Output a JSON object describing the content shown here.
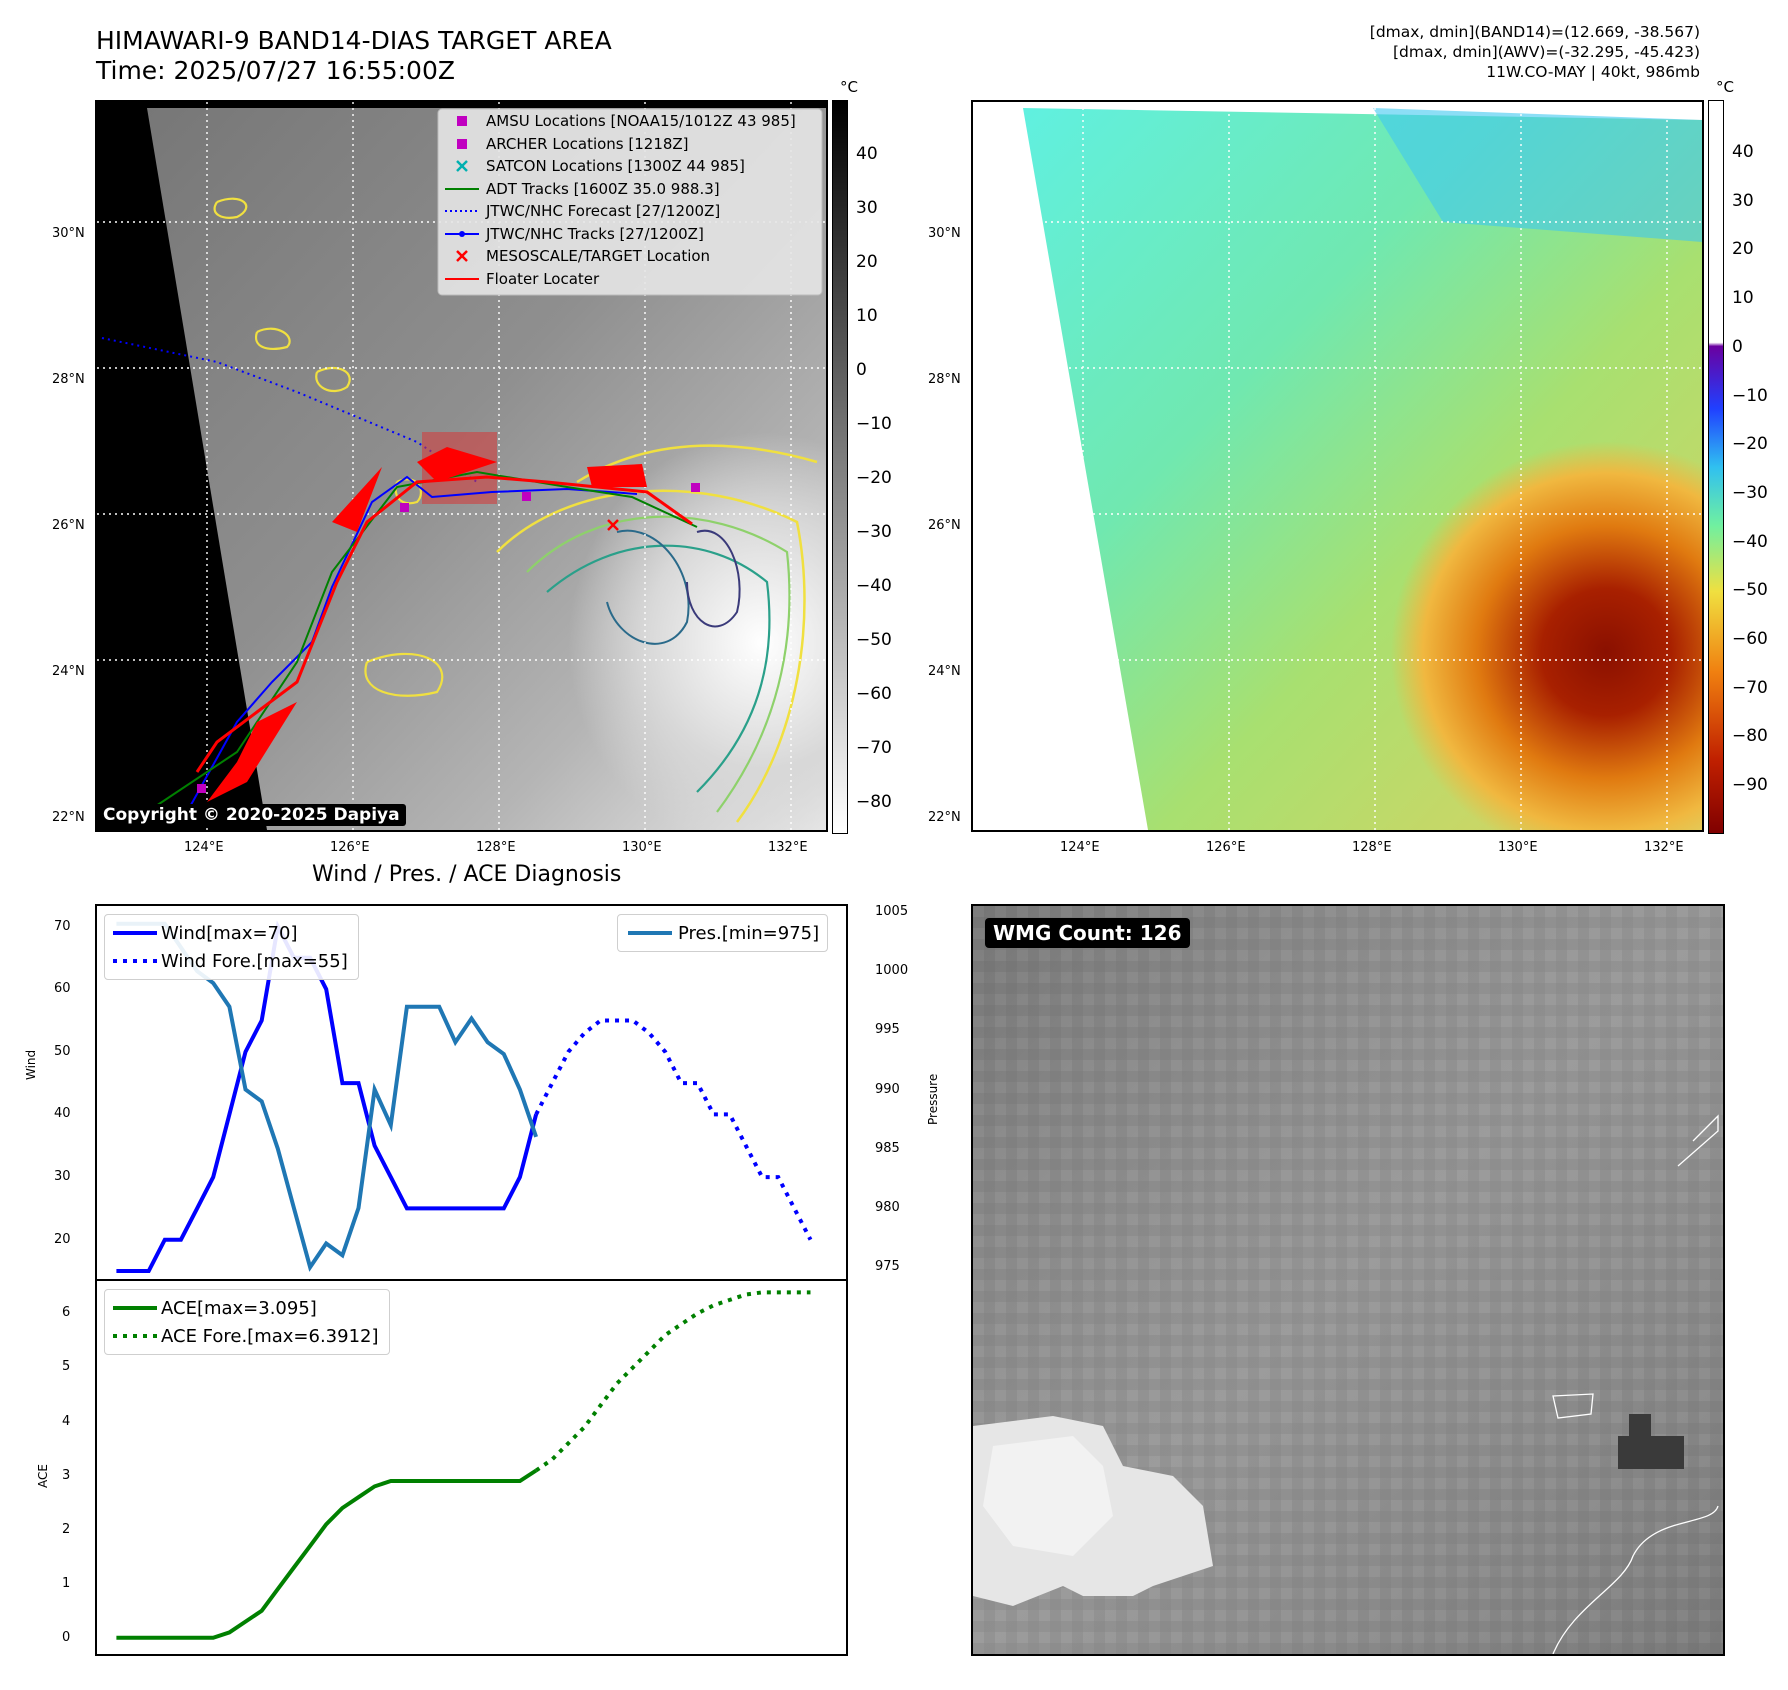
{
  "left_panel": {
    "title_line1": "HIMAWARI-9 BAND14-DIAS TARGET AREA",
    "title_line2": "Time: 2025/07/27 16:55:00Z",
    "unit": "°C",
    "copyright": "Copyright © 2020-2025 Dapiya",
    "lat_labels": [
      "30°N",
      "28°N",
      "26°N",
      "24°N",
      "22°N"
    ],
    "lon_labels": [
      "124°E",
      "126°E",
      "128°E",
      "130°E",
      "132°E"
    ],
    "colorbar_ticks": [
      "40",
      "30",
      "20",
      "10",
      "0",
      "−10",
      "−20",
      "−30",
      "−40",
      "−50",
      "−60",
      "−70",
      "−80"
    ],
    "legend": [
      {
        "label": "AMSU Locations [NOAA15/1012Z 43 985]",
        "symbol": "square",
        "color": "#c000c0"
      },
      {
        "label": "ARCHER Locations [1218Z]",
        "symbol": "square",
        "color": "#c000c0"
      },
      {
        "label": "SATCON Locations [1300Z 44 985]",
        "symbol": "x",
        "color": "#00b0b0"
      },
      {
        "label": "ADT Tracks [1600Z 35.0 988.3]",
        "symbol": "line",
        "color": "#008000"
      },
      {
        "label": "JTWC/NHC Forecast [27/1200Z]",
        "symbol": "dotted",
        "color": "#0000ff"
      },
      {
        "label": "JTWC/NHC Tracks [27/1200Z]",
        "symbol": "line-dot",
        "color": "#0000ff"
      },
      {
        "label": "MESOSCALE/TARGET Location",
        "symbol": "x",
        "color": "#ff0000"
      },
      {
        "label": "Floater Locater",
        "symbol": "line",
        "color": "#ff0000"
      }
    ]
  },
  "right_panel": {
    "info_line1": "[dmax, dmin](BAND14)=(12.669, -38.567)",
    "info_line2": "[dmax, dmin](AWV)=(-32.295, -45.423)",
    "info_line3": "11W.CO-MAY | 40kt, 986mb",
    "unit": "°C",
    "lat_labels": [
      "30°N",
      "28°N",
      "26°N",
      "24°N",
      "22°N"
    ],
    "lon_labels": [
      "124°E",
      "126°E",
      "128°E",
      "130°E",
      "132°E"
    ],
    "colorbar_ticks": [
      "40",
      "30",
      "20",
      "10",
      "0",
      "−10",
      "−20",
      "−30",
      "−40",
      "−50",
      "−60",
      "−70",
      "−80",
      "−90"
    ]
  },
  "wind_panel": {
    "title": "Wind / Pres. / ACE Diagnosis",
    "ylabel_left": "Wind",
    "ylabel_right": "Pressure",
    "wind_ticks": [
      "70",
      "60",
      "50",
      "40",
      "30",
      "20"
    ],
    "pres_ticks": [
      "1005",
      "1000",
      "995",
      "990",
      "985",
      "980",
      "975"
    ]
  },
  "ace_panel": {
    "ylabel": "ACE",
    "ticks": [
      "6",
      "5",
      "4",
      "3",
      "2",
      "1",
      "0"
    ]
  },
  "wmg_panel": {
    "label": "WMG Count: 126"
  },
  "chart_data": [
    {
      "type": "line",
      "title": "Wind / Pres. / ACE Diagnosis",
      "ylabel": "Wind",
      "y2label": "Pressure",
      "ylim": [
        15,
        72
      ],
      "y2lim": [
        974,
        1005.5
      ],
      "x": [
        0,
        1,
        2,
        3,
        4,
        5,
        6,
        7,
        8,
        9,
        10,
        11,
        12,
        13,
        14,
        15,
        16,
        17,
        18,
        19,
        20,
        21,
        22,
        23,
        24,
        25,
        26,
        27,
        28,
        29,
        30,
        31,
        32,
        33,
        34,
        35,
        36,
        37,
        38,
        39,
        40,
        41,
        42,
        43
      ],
      "series": [
        {
          "name": "Wind[max=70]",
          "axis": "left",
          "style": "solid",
          "color": "#0000ff",
          "x": [
            0,
            1,
            2,
            3,
            4,
            5,
            6,
            7,
            8,
            9,
            10,
            11,
            12,
            13,
            14,
            15,
            16,
            17,
            18,
            19,
            20,
            21,
            22,
            23,
            24,
            25,
            26
          ],
          "values": [
            15,
            15,
            15,
            20,
            20,
            25,
            30,
            40,
            50,
            55,
            70,
            65,
            65,
            60,
            45,
            45,
            35,
            30,
            25,
            25,
            25,
            25,
            25,
            25,
            25,
            30,
            40
          ]
        },
        {
          "name": "Wind Fore.[max=55]",
          "axis": "left",
          "style": "dotted",
          "color": "#0000ff",
          "x": [
            26,
            27,
            28,
            29,
            30,
            31,
            32,
            33,
            34,
            35,
            36,
            37,
            38,
            39,
            40,
            41,
            42,
            43
          ],
          "values": [
            40,
            45,
            50,
            53,
            55,
            55,
            55,
            53,
            50,
            45,
            45,
            40,
            40,
            35,
            30,
            30,
            25,
            20
          ]
        },
        {
          "name": "Pres.[min=975]",
          "axis": "right",
          "style": "solid",
          "color": "#1f77b4",
          "x": [
            0,
            1,
            2,
            3,
            4,
            5,
            6,
            7,
            8,
            9,
            10,
            11,
            12,
            13,
            14,
            15,
            16,
            17,
            18,
            19,
            20,
            21,
            22,
            23,
            24,
            25,
            26
          ],
          "values": [
            1004,
            1004,
            1004,
            1004,
            1002,
            1000,
            999,
            997,
            990,
            989,
            985,
            980,
            975,
            977,
            976,
            980,
            990,
            987,
            997,
            997,
            997,
            994,
            996,
            994,
            993,
            990,
            986
          ]
        }
      ]
    },
    {
      "type": "line",
      "ylabel": "ACE",
      "ylim": [
        -0.3,
        6.6
      ],
      "series": [
        {
          "name": "ACE[max=3.095]",
          "style": "solid",
          "color": "#008000",
          "x": [
            0,
            1,
            2,
            3,
            4,
            5,
            6,
            7,
            8,
            9,
            10,
            11,
            12,
            13,
            14,
            15,
            16,
            17,
            18,
            19,
            20,
            21,
            22,
            23,
            24,
            25,
            26
          ],
          "values": [
            0,
            0,
            0,
            0,
            0,
            0,
            0,
            0.1,
            0.3,
            0.5,
            0.9,
            1.3,
            1.7,
            2.1,
            2.4,
            2.6,
            2.8,
            2.9,
            2.9,
            2.9,
            2.9,
            2.9,
            2.9,
            2.9,
            2.9,
            2.9,
            3.095
          ]
        },
        {
          "name": "ACE Fore.[max=6.3912]",
          "style": "dotted",
          "color": "#008000",
          "x": [
            26,
            27,
            28,
            29,
            30,
            31,
            32,
            33,
            34,
            35,
            36,
            37,
            38,
            39,
            40,
            41,
            42,
            43
          ],
          "values": [
            3.095,
            3.3,
            3.6,
            3.9,
            4.3,
            4.7,
            5.0,
            5.3,
            5.6,
            5.8,
            6.0,
            6.15,
            6.25,
            6.35,
            6.39,
            6.39,
            6.39,
            6.39
          ]
        }
      ]
    }
  ]
}
